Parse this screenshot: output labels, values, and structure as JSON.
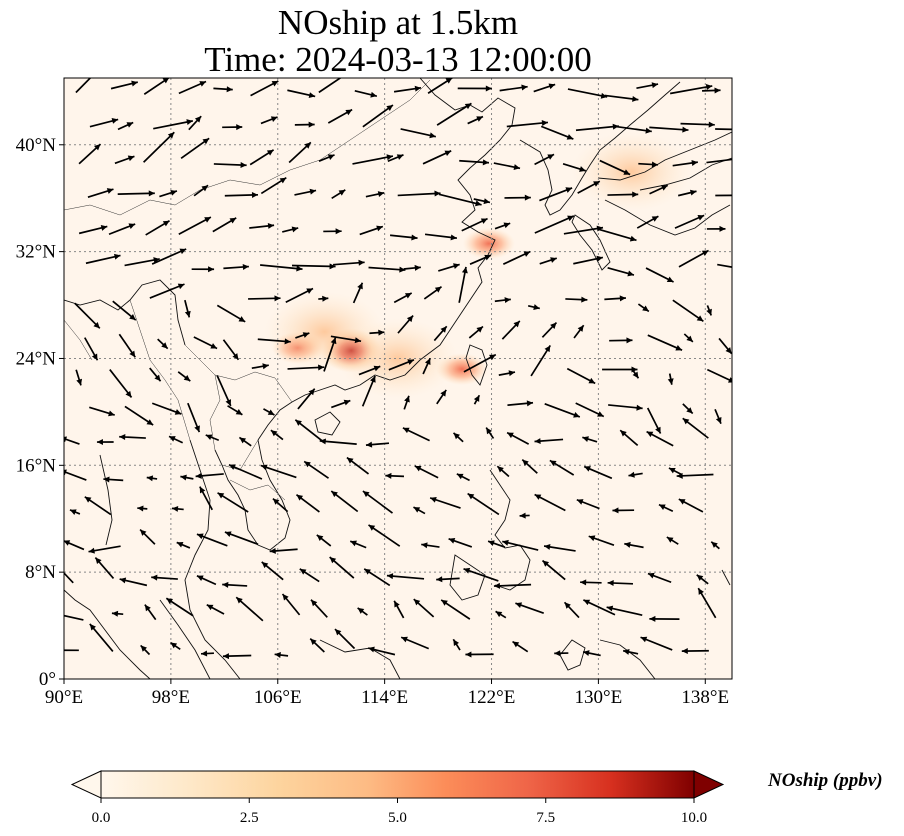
{
  "figure": {
    "title_line1": "NOship at 1.5km",
    "title_line2": "Time: 2024-03-13 12:00:00"
  },
  "map": {
    "lon_range": [
      90,
      140
    ],
    "lat_range": [
      0,
      45
    ],
    "lon_ticks": [
      "90°E",
      "98°E",
      "106°E",
      "114°E",
      "122°E",
      "130°E",
      "138°E"
    ],
    "lat_ticks": [
      "0°",
      "8°N",
      "16°N",
      "24°N",
      "32°N",
      "40°N"
    ],
    "background_color": "#fff5eb",
    "gridlines": "dotted",
    "hotspots_lonlat": [
      {
        "lon": 111.5,
        "lat": 24.6,
        "level": "high"
      },
      {
        "lon": 107.5,
        "lat": 24.8,
        "level": "medium"
      },
      {
        "lon": 109.5,
        "lat": 26.0,
        "level": "low"
      },
      {
        "lon": 121.8,
        "lat": 32.6,
        "level": "medium"
      },
      {
        "lon": 119.8,
        "lat": 23.2,
        "level": "medium"
      },
      {
        "lon": 115.0,
        "lat": 24.0,
        "level": "low"
      },
      {
        "lon": 132.5,
        "lat": 38.0,
        "level": "low"
      }
    ]
  },
  "colorbar": {
    "label": "NOship (ppbv)",
    "ticks": [
      "0.0",
      "2.5",
      "5.0",
      "7.5",
      "10.0"
    ],
    "min": 0,
    "max": 10,
    "colormap": "OrRd",
    "extend": "both"
  }
}
